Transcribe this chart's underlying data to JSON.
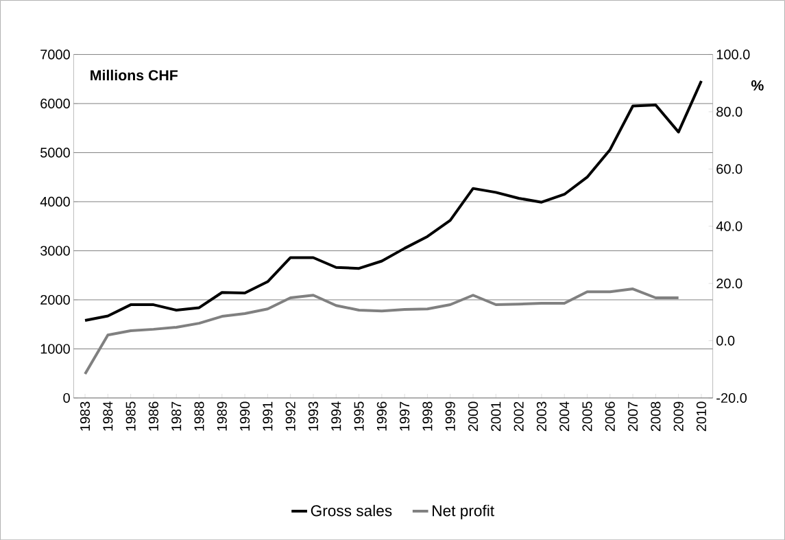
{
  "chart_data": {
    "type": "line",
    "ylabel": "Millions CHF",
    "y2label": "%",
    "categories": [
      "1983",
      "1984",
      "1985",
      "1986",
      "1987",
      "1988",
      "1989",
      "1990",
      "1991",
      "1992",
      "1993",
      "1994",
      "1995",
      "1996",
      "1997",
      "1998",
      "1999",
      "2000",
      "2001",
      "2002",
      "2003",
      "2004",
      "2005",
      "2006",
      "2007",
      "2008",
      "2009",
      "2010"
    ],
    "series": [
      {
        "name": "Gross sales",
        "color": "#000000",
        "values": [
          1580,
          1670,
          1900,
          1900,
          1790,
          1840,
          2150,
          2140,
          2370,
          2860,
          2860,
          2660,
          2640,
          2790,
          3050,
          3290,
          3620,
          4270,
          4190,
          4070,
          3990,
          4150,
          4500,
          5060,
          5950,
          5970,
          5420,
          6460
        ]
      },
      {
        "name": "Net profit",
        "color": "#808080",
        "axis": "y2",
        "values": [
          -11.6,
          2.0,
          3.5,
          4.0,
          4.7,
          6.1,
          8.5,
          9.5,
          11.1,
          15.0,
          15.9,
          12.3,
          10.7,
          10.4,
          10.9,
          11.1,
          12.6,
          15.9,
          12.6,
          12.8,
          13.1,
          13.1,
          17.1,
          17.1,
          18.1,
          15.0,
          15.0,
          null
        ]
      }
    ],
    "ylim": [
      0,
      7000
    ],
    "yticks": [
      0,
      1000,
      2000,
      3000,
      4000,
      5000,
      6000,
      7000
    ],
    "y2lim": [
      -20,
      100
    ],
    "y2ticks": [
      {
        "value": -20,
        "label": "-20.0"
      },
      {
        "value": 0,
        "label": "0.0"
      },
      {
        "value": 20,
        "label": "20.0"
      },
      {
        "value": 40,
        "label": "40.0"
      },
      {
        "value": 60,
        "label": "60.0"
      },
      {
        "value": 80,
        "label": "80.0"
      },
      {
        "value": 100,
        "label": "100.0"
      }
    ],
    "grid": "y",
    "legend": "bottom",
    "marker": "none",
    "line_style": "solid"
  }
}
